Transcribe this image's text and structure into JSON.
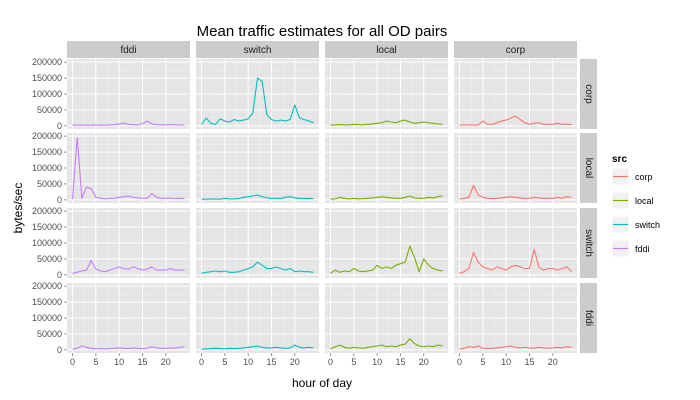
{
  "chart_data": {
    "type": "line",
    "title": "Mean traffic estimates for all OD pairs",
    "xlabel": "hour of day",
    "ylabel": "bytes/sec",
    "xlim": [
      0,
      24
    ],
    "ylim": [
      0,
      200000
    ],
    "x_ticks": [
      0,
      5,
      10,
      15,
      20
    ],
    "y_ticks": [
      0,
      50000,
      100000,
      150000,
      200000
    ],
    "y_tick_labels": [
      "0",
      "50000",
      "100000",
      "150000",
      "200000"
    ],
    "columns": [
      "fddi",
      "switch",
      "local",
      "corp"
    ],
    "rows": [
      "corp",
      "local",
      "switch",
      "fddi"
    ],
    "legend": {
      "title": "src",
      "position": "right",
      "entries": [
        {
          "name": "corp",
          "color": "#f8766d"
        },
        {
          "name": "local",
          "color": "#7cae00"
        },
        {
          "name": "switch",
          "color": "#00bfc4"
        },
        {
          "name": "fddi",
          "color": "#c77cff"
        }
      ]
    },
    "panel_background": "#e5e5e5",
    "grid": true,
    "x": [
      0,
      1,
      2,
      3,
      4,
      5,
      6,
      7,
      8,
      9,
      10,
      11,
      12,
      13,
      14,
      15,
      16,
      17,
      18,
      19,
      20,
      21,
      22,
      23,
      24
    ],
    "panels": [
      {
        "row": "corp",
        "col": "fddi",
        "values": [
          2000,
          2000,
          3000,
          2000,
          2000,
          3000,
          2000,
          2000,
          3000,
          4000,
          6000,
          8000,
          5000,
          4000,
          3000,
          7000,
          15000,
          6000,
          4000,
          3000,
          3000,
          4000,
          3000,
          3000,
          3000
        ]
      },
      {
        "row": "corp",
        "col": "switch",
        "values": [
          5000,
          25000,
          8000,
          5000,
          22000,
          15000,
          12000,
          20000,
          15000,
          18000,
          22000,
          40000,
          150000,
          140000,
          35000,
          20000,
          15000,
          18000,
          15000,
          20000,
          65000,
          25000,
          20000,
          15000,
          10000
        ]
      },
      {
        "row": "corp",
        "col": "local",
        "values": [
          2000,
          3000,
          4000,
          3000,
          3000,
          5000,
          4000,
          3000,
          5000,
          6000,
          8000,
          10000,
          15000,
          12000,
          10000,
          15000,
          18000,
          12000,
          8000,
          10000,
          12000,
          10000,
          8000,
          6000,
          5000
        ]
      },
      {
        "row": "corp",
        "col": "corp",
        "values": [
          2000,
          3000,
          3000,
          2000,
          3000,
          15000,
          5000,
          5000,
          10000,
          15000,
          18000,
          25000,
          30000,
          20000,
          10000,
          5000,
          8000,
          10000,
          5000,
          5000,
          5000,
          8000,
          5000,
          5000,
          4000
        ]
      },
      {
        "row": "local",
        "col": "fddi",
        "values": [
          2000,
          195000,
          5000,
          40000,
          35000,
          8000,
          5000,
          3000,
          4000,
          5000,
          8000,
          10000,
          12000,
          8000,
          6000,
          5000,
          5000,
          20000,
          8000,
          5000,
          5000,
          5000,
          4000,
          5000,
          4000
        ]
      },
      {
        "row": "local",
        "col": "switch",
        "values": [
          2000,
          2000,
          3000,
          2000,
          2000,
          5000,
          3000,
          3000,
          4000,
          8000,
          10000,
          12000,
          15000,
          10000,
          6000,
          5000,
          5000,
          5000,
          8000,
          10000,
          6000,
          5000,
          4000,
          5000,
          4000
        ]
      },
      {
        "row": "local",
        "col": "local",
        "values": [
          2000,
          3000,
          8000,
          5000,
          3000,
          5000,
          3000,
          4000,
          5000,
          6000,
          8000,
          10000,
          8000,
          6000,
          5000,
          5000,
          8000,
          12000,
          6000,
          5000,
          5000,
          8000,
          6000,
          10000,
          12000
        ]
      },
      {
        "row": "local",
        "col": "corp",
        "values": [
          2000,
          5000,
          8000,
          45000,
          15000,
          8000,
          5000,
          4000,
          5000,
          6000,
          8000,
          10000,
          8000,
          6000,
          4000,
          5000,
          8000,
          6000,
          5000,
          5000,
          5000,
          8000,
          5000,
          10000,
          8000
        ]
      },
      {
        "row": "switch",
        "col": "fddi",
        "values": [
          5000,
          8000,
          12000,
          15000,
          45000,
          18000,
          12000,
          10000,
          15000,
          20000,
          25000,
          20000,
          18000,
          25000,
          20000,
          15000,
          18000,
          25000,
          15000,
          15000,
          15000,
          20000,
          15000,
          15000,
          15000
        ]
      },
      {
        "row": "switch",
        "col": "switch",
        "values": [
          5000,
          8000,
          10000,
          12000,
          10000,
          12000,
          8000,
          8000,
          10000,
          15000,
          20000,
          25000,
          40000,
          30000,
          20000,
          20000,
          25000,
          20000,
          15000,
          20000,
          10000,
          12000,
          10000,
          10000,
          8000
        ]
      },
      {
        "row": "switch",
        "col": "local",
        "values": [
          5000,
          15000,
          8000,
          12000,
          10000,
          20000,
          12000,
          10000,
          12000,
          15000,
          30000,
          20000,
          25000,
          20000,
          30000,
          35000,
          40000,
          90000,
          55000,
          10000,
          50000,
          30000,
          20000,
          15000,
          12000
        ]
      },
      {
        "row": "switch",
        "col": "corp",
        "values": [
          5000,
          10000,
          20000,
          70000,
          40000,
          25000,
          20000,
          15000,
          25000,
          20000,
          15000,
          25000,
          30000,
          25000,
          20000,
          20000,
          80000,
          25000,
          15000,
          20000,
          20000,
          15000,
          20000,
          25000,
          10000
        ]
      },
      {
        "row": "fddi",
        "col": "fddi",
        "values": [
          2000,
          5000,
          12000,
          8000,
          5000,
          3000,
          4000,
          3000,
          4000,
          5000,
          6000,
          5000,
          4000,
          6000,
          5000,
          4000,
          5000,
          10000,
          6000,
          5000,
          5000,
          6000,
          5000,
          8000,
          10000
        ]
      },
      {
        "row": "fddi",
        "col": "switch",
        "values": [
          2000,
          3000,
          4000,
          5000,
          4000,
          3000,
          5000,
          4000,
          5000,
          6000,
          8000,
          10000,
          12000,
          8000,
          6000,
          6000,
          8000,
          6000,
          5000,
          6000,
          15000,
          8000,
          6000,
          8000,
          6000
        ]
      },
      {
        "row": "fddi",
        "col": "local",
        "values": [
          3000,
          10000,
          15000,
          8000,
          5000,
          8000,
          6000,
          5000,
          8000,
          10000,
          12000,
          15000,
          10000,
          12000,
          10000,
          15000,
          18000,
          35000,
          20000,
          12000,
          10000,
          12000,
          10000,
          15000,
          12000
        ]
      },
      {
        "row": "fddi",
        "col": "corp",
        "values": [
          2000,
          5000,
          10000,
          8000,
          12000,
          5000,
          4000,
          5000,
          6000,
          8000,
          10000,
          12000,
          8000,
          6000,
          8000,
          6000,
          5000,
          8000,
          6000,
          5000,
          6000,
          8000,
          6000,
          10000,
          8000
        ]
      }
    ]
  }
}
